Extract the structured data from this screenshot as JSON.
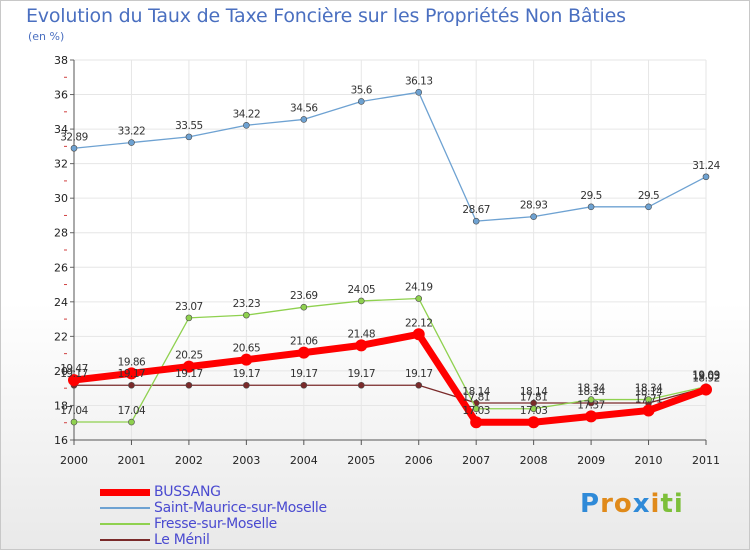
{
  "title": "Evolution du Taux de Taxe Foncière sur les Propriétés Non Bâties",
  "unit": "(en %)",
  "logo": {
    "letters": [
      "P",
      "r",
      "o",
      "x",
      "i",
      "t",
      "i"
    ],
    "colors": [
      "#2f8ad8",
      "#e08a1a",
      "#e08a1a",
      "#2f8ad8",
      "#e08a1a",
      "#7dbf3a",
      "#7dbf3a"
    ]
  },
  "chart_data": {
    "type": "line",
    "x": [
      "2000",
      "2001",
      "2002",
      "2003",
      "2004",
      "2005",
      "2006",
      "2007",
      "2008",
      "2009",
      "2010",
      "2011"
    ],
    "ylim": [
      16,
      38
    ],
    "yticks": [
      "16",
      "18",
      "20",
      "22",
      "24",
      "26",
      "28",
      "30",
      "32",
      "34",
      "36",
      "38"
    ],
    "grid": true,
    "legend_position": "bottom-left",
    "series": [
      {
        "name": "Le Ménil",
        "color": "#7a2a2a",
        "values": [
          19.17,
          19.17,
          19.17,
          19.17,
          19.17,
          19.17,
          19.17,
          18.14,
          18.14,
          18.14,
          18.14,
          19.03
        ],
        "labels": [
          "19.17",
          "19.17",
          "19.17",
          "19.17",
          "19.17",
          "19.17",
          "19.17",
          "18.14",
          "18.14",
          "18.14",
          "18.14",
          "19.03"
        ]
      },
      {
        "name": "Fresse-sur-Moselle",
        "color": "#8fd14f",
        "values": [
          17.04,
          17.04,
          23.07,
          23.23,
          23.69,
          24.05,
          24.19,
          17.81,
          17.81,
          18.34,
          18.34,
          19.09
        ],
        "labels": [
          "17.04",
          "17.04",
          "23.07",
          "23.23",
          "23.69",
          "24.05",
          "24.19",
          "17.81",
          "17.81",
          "18.34",
          "18.34",
          "19.09"
        ]
      },
      {
        "name": "Saint-Maurice-sur-Moselle",
        "color": "#6ea2d2",
        "values": [
          32.89,
          33.22,
          33.55,
          34.22,
          34.56,
          35.6,
          36.13,
          28.67,
          28.93,
          29.5,
          29.5,
          31.24
        ],
        "labels": [
          "32.89",
          "33.22",
          "33.55",
          "34.22",
          "34.56",
          "35.6",
          "36.13",
          "28.67",
          "28.93",
          "29.5",
          "29.5",
          "31.24"
        ]
      },
      {
        "name": "BUSSANG",
        "color": "#ff0000",
        "values": [
          19.47,
          19.86,
          20.25,
          20.65,
          21.06,
          21.48,
          22.12,
          17.03,
          17.03,
          17.37,
          17.71,
          18.92
        ],
        "labels": [
          "19.47",
          "19.86",
          "20.25",
          "20.65",
          "21.06",
          "21.48",
          "22.12",
          "17.03",
          "17.03",
          "17.37",
          "17.71",
          "18.92"
        ]
      }
    ],
    "legend": [
      "BUSSANG",
      "Saint-Maurice-sur-Moselle",
      "Fresse-sur-Moselle",
      "Le Ménil"
    ]
  }
}
